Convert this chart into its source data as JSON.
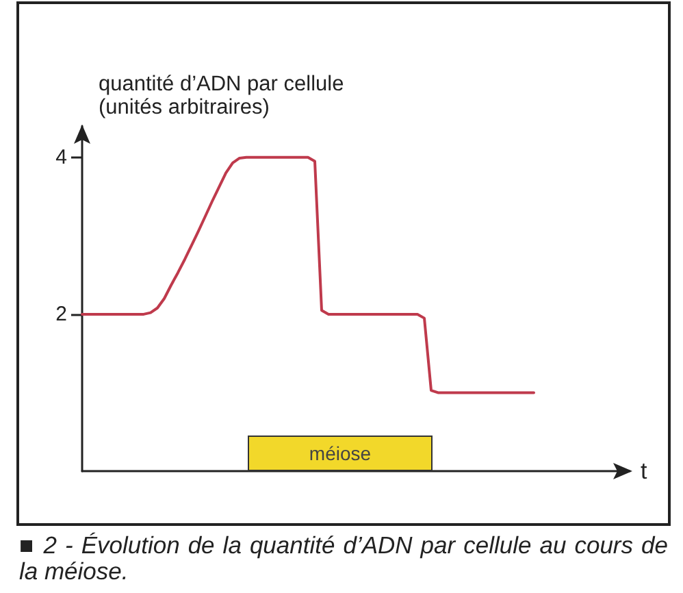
{
  "chart_data": {
    "type": "line",
    "ylabel": "quantité d’ADN par cellule\n(unités arbitraires)",
    "xlabel": "t",
    "categories": [
      null,
      null,
      null,
      null,
      null,
      null,
      null,
      null,
      null,
      null,
      null,
      null,
      null,
      null,
      null,
      null,
      null,
      null,
      null,
      null,
      null,
      null,
      null,
      null,
      null,
      null,
      null,
      null,
      null,
      null,
      null,
      null,
      null,
      null,
      null,
      null,
      null,
      null,
      null,
      null,
      null,
      null,
      null,
      null,
      null,
      null,
      null,
      null,
      null,
      null,
      null,
      null,
      null,
      null,
      null,
      null,
      null,
      null,
      null,
      null,
      null,
      null,
      null,
      null,
      null,
      null,
      null,
      null,
      null,
      null,
      null,
      null,
      null,
      null,
      null,
      null,
      null,
      null,
      null,
      null,
      null
    ],
    "values": [
      2,
      2,
      2,
      2,
      2,
      2,
      2,
      2,
      2,
      2,
      2.02,
      2.08,
      2.2,
      2.37,
      2.53,
      2.7,
      2.88,
      3.06,
      3.25,
      3.44,
      3.62,
      3.8,
      3.93,
      3.99,
      4,
      4,
      4,
      4,
      4,
      4,
      4,
      4,
      4,
      4,
      3.95,
      2.05,
      2,
      2,
      2,
      2,
      2,
      2,
      2,
      2,
      2,
      2,
      2,
      2,
      2,
      2,
      1.95,
      1.03,
      1,
      1,
      1,
      1,
      1,
      1,
      1,
      1,
      1,
      1,
      1,
      1,
      1,
      1,
      1,
      null,
      null,
      null,
      null,
      null,
      null,
      null,
      null,
      null,
      null,
      null,
      null,
      null,
      null
    ],
    "color": "#bf3a4c",
    "ylim": [
      0,
      4.4
    ],
    "yticks": [
      2,
      4
    ],
    "tick_labels": "y",
    "grid": false,
    "marker": "none",
    "annotations": [
      "méiose",
      "■ 2 - Évolution de la quantité d’ADN par cellule au cours de la méiose."
    ]
  }
}
